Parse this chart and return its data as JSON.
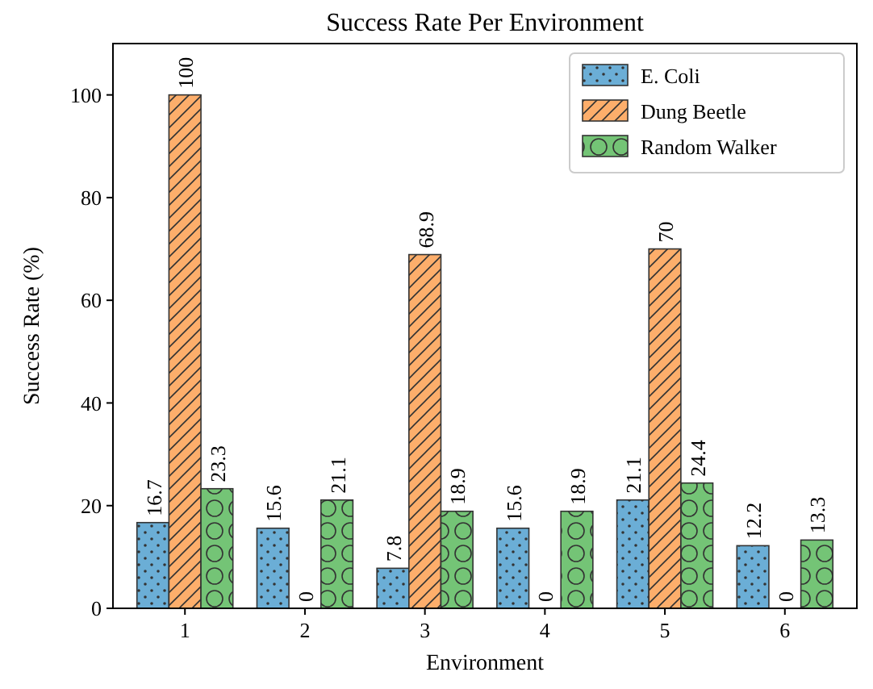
{
  "chart_data": {
    "type": "bar",
    "title": "Success Rate Per Environment",
    "xlabel": "Environment",
    "ylabel": "Success Rate (%)",
    "categories": [
      "1",
      "2",
      "3",
      "4",
      "5",
      "6"
    ],
    "series": [
      {
        "name": "E. Coli",
        "color": "#6baed6",
        "values": [
          16.7,
          15.6,
          7.8,
          15.6,
          21.1,
          12.2
        ]
      },
      {
        "name": "Dung Beetle",
        "color": "#fdae6b",
        "values": [
          100,
          0,
          68.9,
          0,
          70,
          0
        ]
      },
      {
        "name": "Random Walker",
        "color": "#74c476",
        "values": [
          23.3,
          21.1,
          18.9,
          18.9,
          24.4,
          13.3
        ]
      }
    ],
    "ylim": [
      0,
      110
    ],
    "yticks": [
      0,
      20,
      40,
      60,
      80,
      100
    ],
    "data_labels": true,
    "legend": "top right",
    "grid": false
  }
}
